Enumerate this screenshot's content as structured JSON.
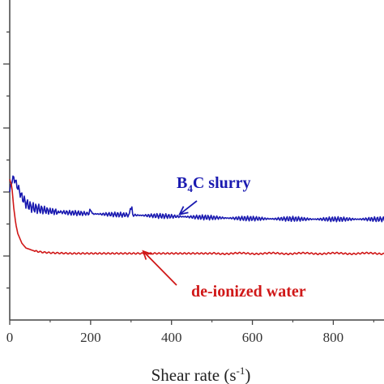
{
  "chart_data": {
    "type": "line",
    "title": "",
    "xlabel": "Shear rate (s⁻¹)",
    "ylabel": "",
    "xlim": [
      0,
      930
    ],
    "ylim": [
      0,
      100
    ],
    "xticks": [
      0,
      200,
      400,
      600,
      800
    ],
    "xtick_labels": [
      "0",
      "200",
      "400",
      "600",
      "800"
    ],
    "yticks": [
      10,
      20,
      30,
      40,
      50,
      60,
      70,
      80,
      90
    ],
    "grid": false,
    "legend": "none",
    "series": [
      {
        "name": "B4C slurry",
        "color": "#1a1ab0",
        "x": [
          0,
          5,
          10,
          20,
          30,
          40,
          50,
          60,
          80,
          100,
          120,
          150,
          200,
          250,
          300,
          350,
          400,
          450,
          500,
          550,
          600,
          650,
          700,
          750,
          800,
          850,
          900,
          930
        ],
        "y": [
          40.0,
          43.5,
          44.5,
          41.5,
          38.5,
          36.5,
          35.5,
          35.0,
          34.5,
          34.0,
          33.8,
          33.5,
          33.2,
          33.0,
          32.8,
          32.6,
          32.4,
          32.2,
          32.0,
          31.8,
          31.7,
          31.6,
          31.6,
          31.5,
          31.5,
          31.5,
          31.5,
          31.5
        ]
      },
      {
        "name": "de-ionized water",
        "color": "#d01818",
        "x": [
          0,
          5,
          10,
          15,
          20,
          30,
          40,
          60,
          80,
          100,
          150,
          200,
          300,
          400,
          500,
          600,
          700,
          800,
          900,
          930
        ],
        "y": [
          44.0,
          42.0,
          35.0,
          30.0,
          27.0,
          24.0,
          22.5,
          21.6,
          21.2,
          21.0,
          20.8,
          20.8,
          20.8,
          20.8,
          20.8,
          20.8,
          20.8,
          20.8,
          20.8,
          20.8
        ]
      }
    ],
    "annotations": [
      {
        "text_main": "B",
        "text_sub": "4",
        "text_rest": "C slurry",
        "color": "#1a1ab0",
        "arrow_to": [
          420,
          33.0
        ]
      },
      {
        "text": "de-ionized water",
        "color": "#d01818",
        "arrow_to": [
          330,
          21.5
        ]
      }
    ]
  },
  "axis_color": "#444444"
}
